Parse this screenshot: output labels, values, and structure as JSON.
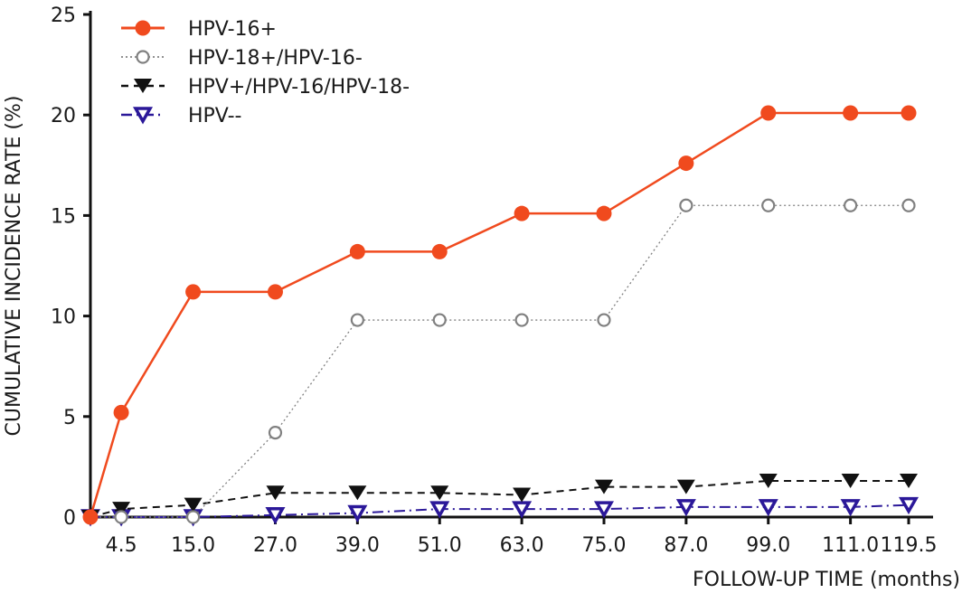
{
  "chart_data": {
    "type": "line",
    "title": "",
    "xlabel": "FOLLOW-UP TIME (months)",
    "ylabel": "CUMULATIVE INCIDENCE RATE (%)",
    "xlim": [
      0,
      119.5
    ],
    "ylim": [
      0,
      25
    ],
    "x_ticks": [
      4.5,
      15.0,
      27.0,
      39.0,
      51.0,
      63.0,
      75.0,
      87.0,
      99.0,
      111.0,
      119.5
    ],
    "x_tick_labels": [
      "4.5",
      "15.0",
      "27.0",
      "39.0",
      "51.0",
      "63.0",
      "75.0",
      "87.0",
      "99.0",
      "111.0",
      "119.5"
    ],
    "y_ticks": [
      0,
      5,
      10,
      15,
      20,
      25
    ],
    "y_tick_labels": [
      "0",
      "5",
      "10",
      "15",
      "20",
      "25"
    ],
    "grid": false,
    "legend_placement": "top-left",
    "x": [
      0,
      4.5,
      15.0,
      27.0,
      39.0,
      51.0,
      63.0,
      75.0,
      87.0,
      99.0,
      111.0,
      119.5
    ],
    "series": [
      {
        "name": "HPV-16+",
        "color": "#f04a1e",
        "marker": "filled-circle",
        "line": "solid",
        "values": [
          0,
          5.2,
          11.2,
          11.2,
          13.2,
          13.2,
          15.1,
          15.1,
          17.6,
          20.1,
          20.1,
          20.1
        ]
      },
      {
        "name": "HPV-18+/HPV-16-",
        "color": "#808080",
        "marker": "open-circle",
        "line": "dotted",
        "values": [
          0,
          0,
          0,
          4.2,
          9.8,
          9.8,
          9.8,
          9.8,
          15.5,
          15.5,
          15.5,
          15.5
        ]
      },
      {
        "name": "HPV+/HPV-16/HPV-18-",
        "color": "#111111",
        "marker": "filled-triangle-down",
        "line": "dashed",
        "values": [
          0,
          0.4,
          0.6,
          1.2,
          1.2,
          1.2,
          1.1,
          1.5,
          1.5,
          1.8,
          1.8,
          1.8
        ]
      },
      {
        "name": "HPV--",
        "color": "#2b1899",
        "marker": "open-triangle-down",
        "line": "dash-dot",
        "values": [
          0,
          0,
          0,
          0.1,
          0.2,
          0.4,
          0.4,
          0.4,
          0.5,
          0.5,
          0.5,
          0.6
        ]
      }
    ]
  }
}
